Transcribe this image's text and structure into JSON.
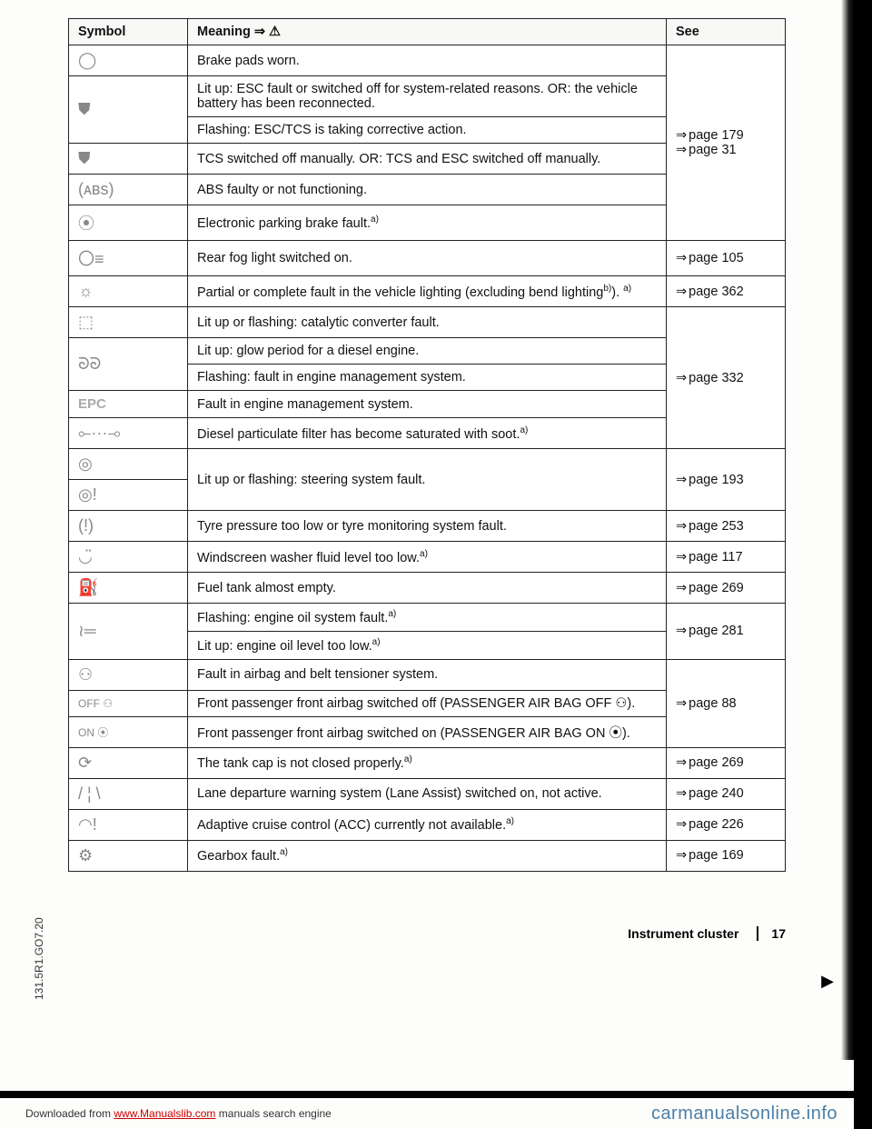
{
  "headers": {
    "symbol": "Symbol",
    "meaning": "Meaning ⇒ ⚠",
    "see": "See"
  },
  "side_code": "131.5R1.GO7.20",
  "footer": {
    "section": "Instrument cluster",
    "page": "17"
  },
  "download_prefix": "Downloaded from ",
  "download_link": "www.Manualslib.com",
  "download_suffix": " manuals search engine",
  "site_watermark": "carmanualsonline.info",
  "icons": {
    "brake_pads": "◯",
    "esc": "⛊",
    "tcs": "⛊",
    "abs": "(ᴀʙs)",
    "epb": "⦿",
    "rear_fog": "〇≡",
    "bulb": "☼",
    "cat": "⬚",
    "glow": "ᘐᘐ",
    "epc": "EPC",
    "dpf": "⟜⋯⊸",
    "steer1": "◎",
    "steer2": "◎!",
    "tpms": "(!)",
    "washer": "◡̈",
    "fuel": "⛽",
    "oil": "≀═",
    "airbag": "⚇",
    "airbag_off": "OFF ⚇",
    "airbag_on": "ON ⦿",
    "cap": "⟳",
    "lane": "/ ¦ \\",
    "acc": "◠!",
    "gearbox": "⚙"
  },
  "rows": {
    "r1": "Brake pads worn.",
    "r2": "Lit up: ESC fault or switched off for system-related reasons. OR: the vehicle battery has been reconnected.",
    "r3": "Flashing: ESC/TCS is taking corrective action.",
    "r4": "TCS switched off manually. OR: TCS and ESC switched off manually.",
    "r5": "ABS faulty or not functioning.",
    "r6": "Electronic parking brake fault.",
    "r7": "Rear fog light switched on.",
    "r8": "Partial or complete fault in the vehicle lighting (excluding bend lighting",
    "r9": "Lit up or flashing: catalytic converter fault.",
    "r10": "Lit up: glow period for a diesel engine.",
    "r11": "Flashing: fault in engine management system.",
    "r12": "Fault in engine management system.",
    "r13": "Diesel particulate filter has become saturated with soot.",
    "r14": "Lit up or flashing: steering system fault.",
    "r15": "Tyre pressure too low or tyre monitoring system fault.",
    "r16": "Windscreen washer fluid level too low.",
    "r17": "Fuel tank almost empty.",
    "r18": "Flashing: engine oil system fault.",
    "r19": "Lit up: engine oil level too low.",
    "r20": "Fault in airbag and belt tensioner system.",
    "r21": "Front passenger front airbag switched off (PASSENGER AIR BAG OFF ⚇).",
    "r22": "Front passenger front airbag switched on (PASSENGER AIR BAG ON ⦿).",
    "r23": "The tank cap is not closed properly.",
    "r24": "Lane departure warning system (Lane Assist) switched on, not active.",
    "r25": "Adaptive cruise control (ACC) currently not available.",
    "r26": "Gearbox fault."
  },
  "see": {
    "s1": "page 179",
    "s2": "page 31",
    "s3": "page 105",
    "s4": "page 362",
    "s5": "page 332",
    "s6": "page 193",
    "s7": "page 253",
    "s8": "page 117",
    "s9": "page 269",
    "s10": "page 281",
    "s11": "page 88",
    "s12": "page 269",
    "s13": "page 240",
    "s14": "page 226",
    "s15": "page 169"
  }
}
